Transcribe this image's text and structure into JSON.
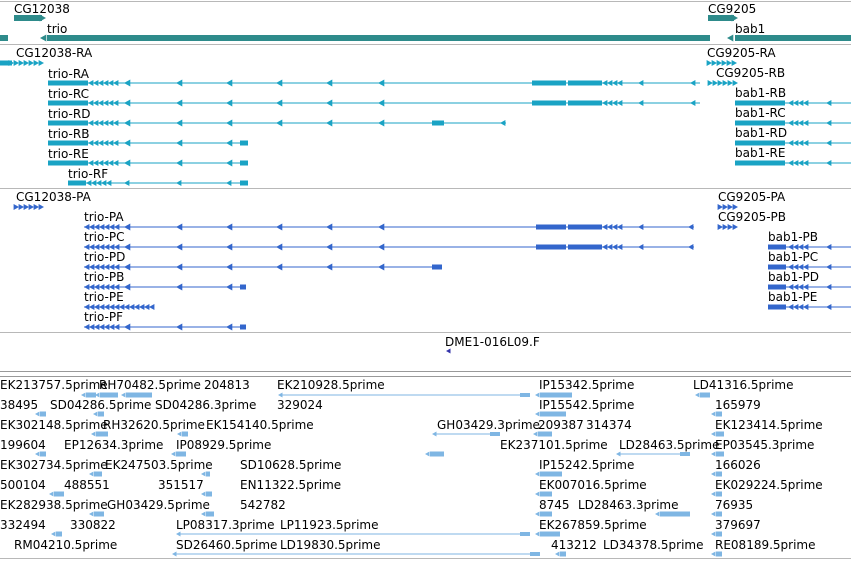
{
  "colors": {
    "gene_track": "#2e8b8b",
    "transcript": "#1aa3c4",
    "cds": "#3366cc",
    "evidence": "#7fb6e3",
    "clone": "#3333aa",
    "separator": "#b8b8b8"
  },
  "gene_track": {
    "genes": [
      {
        "id": "g1",
        "label": "CG12038"
      },
      {
        "id": "g2",
        "label": "trio"
      },
      {
        "id": "g3",
        "label": "CG9205"
      },
      {
        "id": "g4",
        "label": "bab1"
      }
    ]
  },
  "transcript_track": {
    "items": [
      {
        "label": "CG12038-RA"
      },
      {
        "label": "trio-RA"
      },
      {
        "label": "trio-RC"
      },
      {
        "label": "trio-RD"
      },
      {
        "label": "trio-RB"
      },
      {
        "label": "trio-RE"
      },
      {
        "label": "trio-RF"
      },
      {
        "label": "CG9205-RA"
      },
      {
        "label": "CG9205-RB"
      },
      {
        "label": "bab1-RB"
      },
      {
        "label": "bab1-RC"
      },
      {
        "label": "bab1-RD"
      },
      {
        "label": "bab1-RE"
      }
    ]
  },
  "protein_track": {
    "items": [
      {
        "label": "CG12038-PA"
      },
      {
        "label": "trio-PA"
      },
      {
        "label": "trio-PC"
      },
      {
        "label": "trio-PD"
      },
      {
        "label": "trio-PB"
      },
      {
        "label": "trio-PE"
      },
      {
        "label": "trio-PF"
      },
      {
        "label": "CG9205-PA"
      },
      {
        "label": "CG9205-PB"
      },
      {
        "label": "bab1-PB"
      },
      {
        "label": "bab1-PC"
      },
      {
        "label": "bab1-PD"
      },
      {
        "label": "bab1-PE"
      }
    ]
  },
  "clone_track": {
    "items": [
      {
        "label": "DME1-016L09.F"
      }
    ]
  },
  "evidence_track": {
    "items": [
      {
        "label": "EK213757.5prime"
      },
      {
        "label": "RH70482.5prime"
      },
      {
        "label": "204813"
      },
      {
        "label": "EK210928.5prime"
      },
      {
        "label": "IP15342.5prime"
      },
      {
        "label": "LD41316.5prime"
      },
      {
        "label": "38495"
      },
      {
        "label": "SD04286.5prime"
      },
      {
        "label": "SD04286.3prime"
      },
      {
        "label": "329024"
      },
      {
        "label": "IP15542.5prime"
      },
      {
        "label": "165979"
      },
      {
        "label": "EK302148.5prime"
      },
      {
        "label": "RH32620.5prime"
      },
      {
        "label": "EK154140.5prime"
      },
      {
        "label": "GH03429.3prime"
      },
      {
        "label": "209387"
      },
      {
        "label": "314374"
      },
      {
        "label": "EK123414.5prime"
      },
      {
        "label": "199604"
      },
      {
        "label": "EP12634.3prime"
      },
      {
        "label": "IP08929.5prime"
      },
      {
        "label": "EK237101.5prime"
      },
      {
        "label": "LD28463.5prime"
      },
      {
        "label": "EP03545.3prime"
      },
      {
        "label": "EK302734.5prime"
      },
      {
        "label": "EK247503.5prime"
      },
      {
        "label": "SD10628.5prime"
      },
      {
        "label": "IP15242.5prime"
      },
      {
        "label": "166026"
      },
      {
        "label": "500104"
      },
      {
        "label": "488551"
      },
      {
        "label": "351517"
      },
      {
        "label": "EN11322.5prime"
      },
      {
        "label": "EK007016.5prime"
      },
      {
        "label": "EK029224.5prime"
      },
      {
        "label": "EK282938.5prime"
      },
      {
        "label": "GH03429.5prime"
      },
      {
        "label": "542782"
      },
      {
        "label": "8745"
      },
      {
        "label": "LD28463.3prime"
      },
      {
        "label": "76935"
      },
      {
        "label": "332494"
      },
      {
        "label": "330822"
      },
      {
        "label": "LP08317.3prime"
      },
      {
        "label": "LP11923.5prime"
      },
      {
        "label": "EK267859.5prime"
      },
      {
        "label": "379697"
      },
      {
        "label": "RM04210.5prime"
      },
      {
        "label": "SD26460.5prime"
      },
      {
        "label": "LD19830.5prime"
      },
      {
        "label": "413212"
      },
      {
        "label": "LD34378.5prime"
      },
      {
        "label": "RE08189.5prime"
      }
    ]
  }
}
